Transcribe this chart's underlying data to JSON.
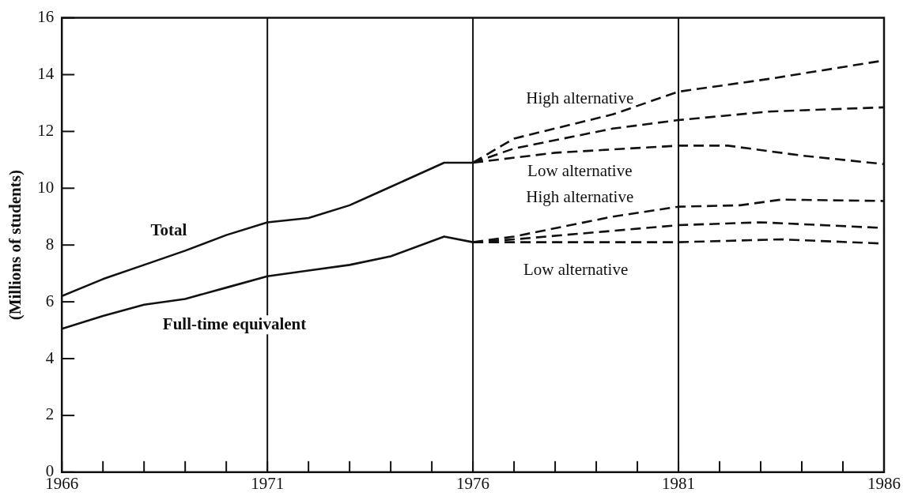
{
  "chart_data": {
    "type": "line",
    "ylabel": "(Millions of students)",
    "xlim": [
      1966,
      1986
    ],
    "ylim": [
      0,
      16
    ],
    "xticks": [
      {
        "value": 1966,
        "label": "1966"
      },
      {
        "value": 1967,
        "label": null
      },
      {
        "value": 1968,
        "label": null
      },
      {
        "value": 1969,
        "label": null
      },
      {
        "value": 1970,
        "label": null
      },
      {
        "value": 1971,
        "label": "1971"
      },
      {
        "value": 1972,
        "label": null
      },
      {
        "value": 1973,
        "label": null
      },
      {
        "value": 1974,
        "label": null
      },
      {
        "value": 1975,
        "label": null
      },
      {
        "value": 1976,
        "label": "1976"
      },
      {
        "value": 1977,
        "label": null
      },
      {
        "value": 1978,
        "label": null
      },
      {
        "value": 1979,
        "label": null
      },
      {
        "value": 1980,
        "label": null
      },
      {
        "value": 1981,
        "label": "1981"
      },
      {
        "value": 1982,
        "label": null
      },
      {
        "value": 1983,
        "label": null
      },
      {
        "value": 1984,
        "label": null
      },
      {
        "value": 1985,
        "label": null
      },
      {
        "value": 1986,
        "label": "1986"
      }
    ],
    "yticks": [
      0,
      2,
      4,
      6,
      8,
      10,
      12,
      14,
      16
    ],
    "grid": false,
    "legend": false,
    "marker": "none",
    "ref_lines": [
      {
        "axis": "x",
        "value": 1971,
        "color": "#111111"
      },
      {
        "axis": "x",
        "value": 1976,
        "color": "#111111"
      },
      {
        "axis": "x",
        "value": 1981,
        "color": "#111111"
      }
    ],
    "series": [
      {
        "name": "Total",
        "color": "#111111",
        "line_style": "solid",
        "x": [
          1966,
          1967,
          1968,
          1969,
          1970,
          1971,
          1972,
          1973,
          1974,
          1975.3,
          1976
        ],
        "values": [
          6.2,
          6.8,
          7.3,
          7.8,
          8.35,
          8.8,
          8.95,
          9.4,
          10.05,
          10.9,
          10.9
        ]
      },
      {
        "name": "Full-time equivalent",
        "color": "#111111",
        "line_style": "solid",
        "x": [
          1966,
          1967,
          1968,
          1969,
          1970,
          1971,
          1972,
          1973,
          1974,
          1975.3,
          1976
        ],
        "values": [
          5.05,
          5.5,
          5.9,
          6.1,
          6.5,
          6.9,
          7.1,
          7.3,
          7.6,
          8.3,
          8.1
        ]
      },
      {
        "name": "High alternative",
        "color": "#111111",
        "line_style": "dashed",
        "x": [
          1976,
          1977,
          1979.4,
          1981,
          1983.2,
          1986
        ],
        "values": [
          10.9,
          11.75,
          12.6,
          13.4,
          13.85,
          14.5
        ]
      },
      {
        "color": "#111111",
        "line_style": "dashed",
        "x": [
          1976,
          1977,
          1979.4,
          1981,
          1983.2,
          1986
        ],
        "values": [
          10.9,
          11.4,
          12.1,
          12.4,
          12.7,
          12.85
        ]
      },
      {
        "name": "Low alternative",
        "color": "#111111",
        "line_style": "dashed",
        "x": [
          1976,
          1978,
          1981,
          1982.2,
          1984,
          1986
        ],
        "values": [
          10.9,
          11.25,
          11.5,
          11.5,
          11.15,
          10.85
        ]
      },
      {
        "name": "High alternative",
        "color": "#111111",
        "line_style": "dashed",
        "x": [
          1976,
          1977,
          1979.4,
          1981,
          1982.5,
          1983.5,
          1986
        ],
        "values": [
          8.1,
          8.3,
          9.0,
          9.35,
          9.4,
          9.6,
          9.55
        ]
      },
      {
        "color": "#111111",
        "line_style": "dashed",
        "x": [
          1976,
          1977,
          1979.4,
          1981,
          1983,
          1986
        ],
        "values": [
          8.1,
          8.2,
          8.5,
          8.7,
          8.8,
          8.6
        ]
      },
      {
        "name": "Low alternative",
        "color": "#111111",
        "line_style": "dashed",
        "x": [
          1976,
          1981,
          1983.5,
          1986
        ],
        "values": [
          8.1,
          8.1,
          8.2,
          8.05
        ]
      }
    ]
  }
}
